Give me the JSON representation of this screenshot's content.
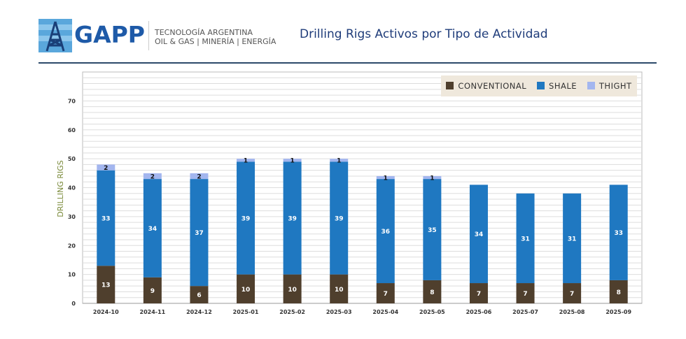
{
  "header": {
    "brand": "GAPP",
    "tagline_1": "TECNOLOGÍA ARGENTINA",
    "tagline_2": "OIL & GAS | MINERÍA | ENERGÍA",
    "title": "Drilling Rigs Activos por Tipo de Actividad"
  },
  "chart_data": {
    "type": "bar",
    "stacked": true,
    "title": "Drilling Rigs Activos por Tipo de Actividad",
    "xlabel": "",
    "ylabel": "DRILLING RIGS",
    "ylim": [
      0,
      80
    ],
    "yticks": [
      0,
      10,
      20,
      30,
      40,
      50,
      60,
      70
    ],
    "grid": true,
    "legend_position": "top-right",
    "categories": [
      "2024-10",
      "2024-11",
      "2024-12",
      "2025-01",
      "2025-02",
      "2025-03",
      "2025-04",
      "2025-05",
      "2025-06",
      "2025-07",
      "2025-08",
      "2025-09"
    ],
    "series": [
      {
        "name": "CONVENTIONAL",
        "color": "#4f3f2d",
        "values": [
          13,
          9,
          6,
          10,
          10,
          10,
          7,
          8,
          7,
          7,
          7,
          8
        ]
      },
      {
        "name": "SHALE",
        "color": "#1f78c1",
        "values": [
          33,
          34,
          37,
          39,
          39,
          39,
          36,
          35,
          34,
          31,
          31,
          33
        ]
      },
      {
        "name": "THIGHT",
        "color": "#a3b6ef",
        "values": [
          2,
          2,
          2,
          1,
          1,
          1,
          1,
          1,
          0,
          0,
          0,
          0
        ]
      }
    ]
  }
}
